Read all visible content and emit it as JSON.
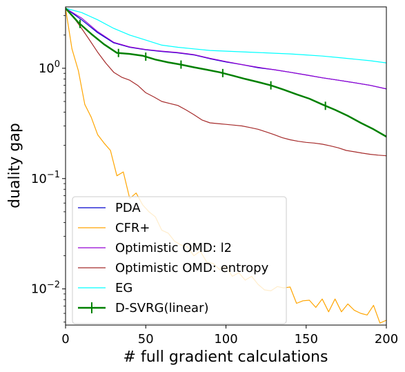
{
  "chart_data": {
    "type": "line",
    "title": "",
    "xlabel": "# full gradient calculations",
    "ylabel": "duality gap",
    "xlim": [
      0,
      200
    ],
    "ylim": [
      0.0047,
      3.6
    ],
    "yscale": "log",
    "grid": false,
    "legend_position": "lower-left",
    "x_ticks": [
      0,
      50,
      100,
      150,
      200
    ],
    "x_tick_labels": [
      "0",
      "50",
      "100",
      "150",
      "200"
    ],
    "y_ticks": [
      1,
      0.1,
      0.01
    ],
    "y_tick_labels": [
      "10^0",
      "10^-1",
      "10^-2"
    ],
    "series": [
      {
        "name": "PDA",
        "color": "#0000cd",
        "line_width": 1.2,
        "x": [
          0,
          10,
          20,
          30,
          40,
          50,
          60,
          70,
          80,
          90,
          100,
          110,
          120,
          130,
          140,
          150,
          160,
          170,
          180,
          190,
          200
        ],
        "y": [
          3.5,
          2.75,
          2.1,
          1.7,
          1.55,
          1.47,
          1.42,
          1.38,
          1.32,
          1.22,
          1.14,
          1.08,
          1.01,
          0.97,
          0.92,
          0.87,
          0.82,
          0.78,
          0.74,
          0.7,
          0.65
        ]
      },
      {
        "name": "CFR+",
        "color": "#ffa500",
        "line_width": 1.2,
        "x": [
          0,
          4,
          8,
          12,
          16,
          20,
          24,
          28,
          32,
          36,
          40,
          44,
          48,
          52,
          56,
          60,
          64,
          68,
          72,
          76,
          80,
          84,
          88,
          92,
          96,
          100,
          104,
          108,
          112,
          116,
          120,
          124,
          128,
          132,
          136,
          140,
          144,
          148,
          152,
          156,
          160,
          164,
          168,
          172,
          176,
          180,
          184,
          188,
          192,
          196,
          200
        ],
        "y": [
          3.5,
          1.5,
          0.95,
          0.47,
          0.36,
          0.25,
          0.21,
          0.18,
          0.106,
          0.115,
          0.066,
          0.074,
          0.058,
          0.05,
          0.045,
          0.034,
          0.032,
          0.027,
          0.025,
          0.024,
          0.02,
          0.022,
          0.0175,
          0.017,
          0.015,
          0.016,
          0.013,
          0.014,
          0.012,
          0.013,
          0.011,
          0.0098,
          0.0096,
          0.0105,
          0.0102,
          0.0104,
          0.0074,
          0.0078,
          0.0079,
          0.0068,
          0.0081,
          0.0062,
          0.0081,
          0.0062,
          0.0073,
          0.0064,
          0.006,
          0.0058,
          0.0071,
          0.0049,
          0.0052
        ]
      },
      {
        "name": "Optimistic OMD: l2",
        "color": "#9400d3",
        "line_width": 1.2,
        "x": [
          0,
          10,
          20,
          30,
          40,
          50,
          60,
          70,
          80,
          90,
          100,
          110,
          120,
          130,
          140,
          150,
          160,
          170,
          180,
          190,
          200
        ],
        "y": [
          3.5,
          2.85,
          2.15,
          1.72,
          1.56,
          1.48,
          1.43,
          1.39,
          1.33,
          1.23,
          1.15,
          1.08,
          1.02,
          0.97,
          0.92,
          0.87,
          0.82,
          0.78,
          0.74,
          0.7,
          0.65
        ]
      },
      {
        "name": "Optimistic OMD: entropy",
        "color": "#a52a2a",
        "line_width": 1.2,
        "x": [
          0,
          5,
          10,
          15,
          20,
          25,
          30,
          35,
          40,
          45,
          50,
          55,
          60,
          65,
          70,
          75,
          80,
          85,
          90,
          95,
          100,
          105,
          110,
          115,
          120,
          125,
          130,
          135,
          140,
          145,
          150,
          155,
          160,
          165,
          170,
          175,
          180,
          185,
          190,
          195,
          200
        ],
        "y": [
          3.5,
          2.9,
          2.3,
          1.8,
          1.4,
          1.12,
          0.92,
          0.83,
          0.78,
          0.7,
          0.6,
          0.55,
          0.5,
          0.48,
          0.46,
          0.42,
          0.38,
          0.34,
          0.32,
          0.315,
          0.31,
          0.305,
          0.3,
          0.29,
          0.28,
          0.265,
          0.25,
          0.235,
          0.225,
          0.218,
          0.213,
          0.21,
          0.205,
          0.198,
          0.19,
          0.18,
          0.175,
          0.17,
          0.166,
          0.163,
          0.161
        ]
      },
      {
        "name": "EG",
        "color": "#00ffff",
        "line_width": 1.2,
        "x": [
          0,
          10,
          20,
          30,
          40,
          50,
          60,
          70,
          80,
          90,
          100,
          110,
          120,
          130,
          140,
          150,
          160,
          170,
          180,
          190,
          200
        ],
        "y": [
          3.5,
          3.2,
          2.75,
          2.3,
          2.0,
          1.8,
          1.62,
          1.55,
          1.5,
          1.45,
          1.43,
          1.41,
          1.39,
          1.37,
          1.35,
          1.32,
          1.29,
          1.25,
          1.21,
          1.17,
          1.12
        ]
      },
      {
        "name": "D-SVRG(linear)",
        "color": "#008000",
        "line_width": 2.5,
        "x": [
          0,
          8,
          16,
          24,
          32,
          40,
          48,
          56,
          64,
          72,
          80,
          88,
          96,
          104,
          112,
          120,
          128,
          136,
          144,
          152,
          160,
          168,
          176,
          184,
          192,
          200
        ],
        "y": [
          3.5,
          2.6,
          2.05,
          1.65,
          1.38,
          1.35,
          1.3,
          1.2,
          1.13,
          1.08,
          1.02,
          0.97,
          0.92,
          0.86,
          0.8,
          0.75,
          0.7,
          0.64,
          0.58,
          0.53,
          0.47,
          0.42,
          0.37,
          0.32,
          0.28,
          0.24
        ],
        "error_bar_x": [
          9,
          33,
          50,
          72,
          98,
          128,
          162
        ]
      }
    ]
  }
}
